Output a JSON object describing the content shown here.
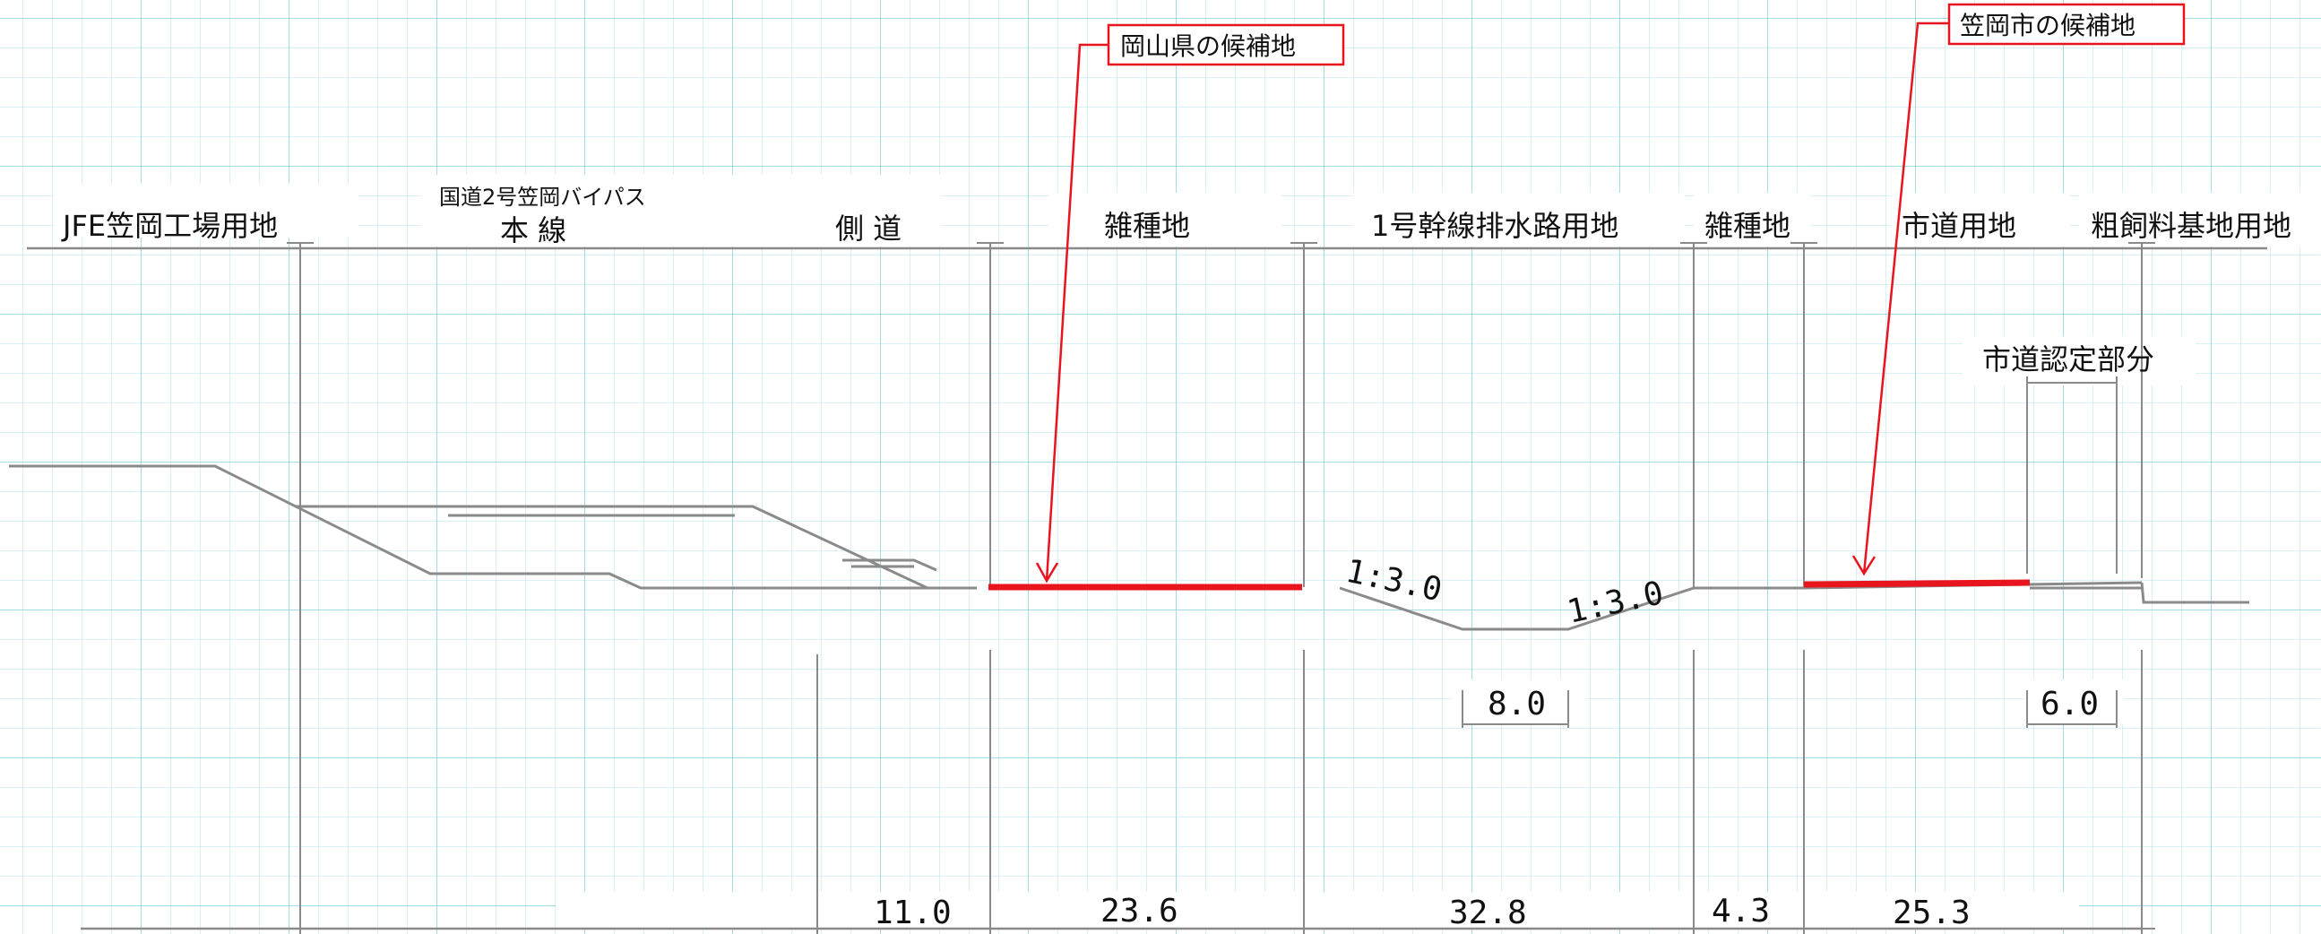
{
  "headers": {
    "jfe": "JFE笠岡工場用地",
    "bypass_main_caption": "国道2号笠岡バイパス",
    "bypass_main": "本 線",
    "side_road": "側 道",
    "misc_land_1": "雑種地",
    "drainage": "1号幹線排水路用地",
    "misc_land_2": "雑種地",
    "city_road": "市道用地",
    "feed_base": "粗飼料基地用地"
  },
  "city_road_certified": "市道認定部分",
  "callouts": {
    "prefecture": "岡山県の候補地",
    "city": "笠岡市の候補地"
  },
  "slopes": {
    "left": "1:3.0",
    "right": "1:3.0"
  },
  "inner_dims": {
    "channel_bottom": "8.0",
    "certified_width": "6.0"
  },
  "widths": [
    "11.0",
    "23.6",
    "32.8",
    "4.3",
    "25.3"
  ],
  "colors": {
    "candidate": "#e8141e",
    "grid": "#8fd3e0",
    "line": "#8a8a8a"
  }
}
